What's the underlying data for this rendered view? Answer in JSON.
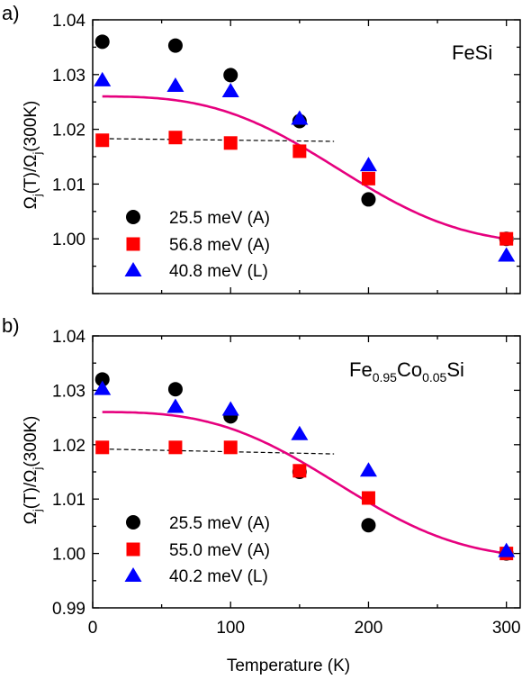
{
  "chart_data": [
    {
      "type": "scatter",
      "panel_label": "a)",
      "material": {
        "text": "FeSi",
        "sub1": "",
        "mid": "",
        "sub2": "",
        "tail": ""
      },
      "ylabel": {
        "base": "Ω",
        "sub": "j",
        "mid": "(T)/Ω",
        "sub2": "j",
        "tail": "(300K)"
      },
      "xlim": [
        0,
        310
      ],
      "ylim": [
        0.99,
        1.04
      ],
      "y_ticks_shown": [
        "1.00",
        "1.01",
        "1.02",
        "1.03",
        "1.04"
      ],
      "series": [
        {
          "name": "25.5 meV (A)",
          "marker": "circle",
          "color": "#000000",
          "points": [
            [
              7,
              1.036
            ],
            [
              60,
              1.0353
            ],
            [
              100,
              1.0299
            ],
            [
              150,
              1.0215
            ],
            [
              200,
              1.0072
            ],
            [
              300,
              1.0
            ]
          ]
        },
        {
          "name": "56.8 meV (A)",
          "marker": "square",
          "color": "#ff0000",
          "points": [
            [
              7,
              1.018
            ],
            [
              60,
              1.0185
            ],
            [
              100,
              1.0175
            ],
            [
              150,
              1.016
            ],
            [
              200,
              1.011
            ],
            [
              300,
              1.0
            ]
          ]
        },
        {
          "name": "40.8 meV (L)",
          "marker": "triangle",
          "color": "#0000ff",
          "points": [
            [
              7,
              1.029
            ],
            [
              60,
              1.028
            ],
            [
              100,
              1.027
            ],
            [
              150,
              1.022
            ],
            [
              200,
              1.0135
            ],
            [
              300,
              0.997
            ]
          ]
        }
      ],
      "fit_curve": {
        "color": "#e6007e",
        "y0": 1.026,
        "y300": 1.0
      },
      "dashed_line": {
        "x": [
          7,
          175
        ],
        "y": [
          1.0183,
          1.0178
        ]
      }
    },
    {
      "type": "scatter",
      "panel_label": "b)",
      "material": {
        "text": "Fe",
        "sub1": "0.95",
        "mid": "Co",
        "sub2": "0.05",
        "tail": "Si"
      },
      "ylabel": {
        "base": "Ω",
        "sub": "j",
        "mid": "(T)/Ω",
        "sub2": "j",
        "tail": "(300K)"
      },
      "xlabel": "Temperature (K)",
      "xlim": [
        0,
        310
      ],
      "ylim": [
        0.99,
        1.04
      ],
      "x_ticks": [
        0,
        100,
        200,
        300
      ],
      "y_ticks_shown": [
        "0.99",
        "1.00",
        "1.01",
        "1.02",
        "1.03",
        "1.04"
      ],
      "series": [
        {
          "name": "25.5 meV (A)",
          "marker": "circle",
          "color": "#000000",
          "points": [
            [
              7,
              1.032
            ],
            [
              60,
              1.0302
            ],
            [
              100,
              1.0252
            ],
            [
              150,
              1.015
            ],
            [
              200,
              1.0052
            ],
            [
              300,
              1.0
            ]
          ]
        },
        {
          "name": "55.0 meV (A)",
          "marker": "square",
          "color": "#ff0000",
          "points": [
            [
              7,
              1.0195
            ],
            [
              60,
              1.0195
            ],
            [
              100,
              1.0195
            ],
            [
              150,
              1.0152
            ],
            [
              200,
              1.0102
            ],
            [
              300,
              1.0
            ]
          ]
        },
        {
          "name": "40.2 meV (L)",
          "marker": "triangle",
          "color": "#0000ff",
          "points": [
            [
              7,
              1.0303
            ],
            [
              60,
              1.027
            ],
            [
              100,
              1.0265
            ],
            [
              150,
              1.022
            ],
            [
              200,
              1.0153
            ],
            [
              300,
              1.0005
            ]
          ]
        }
      ],
      "fit_curve": {
        "color": "#e6007e",
        "y0": 1.026,
        "y300": 1.0
      },
      "dashed_line": {
        "x": [
          7,
          175
        ],
        "y": [
          1.0192,
          1.0183
        ]
      }
    }
  ]
}
